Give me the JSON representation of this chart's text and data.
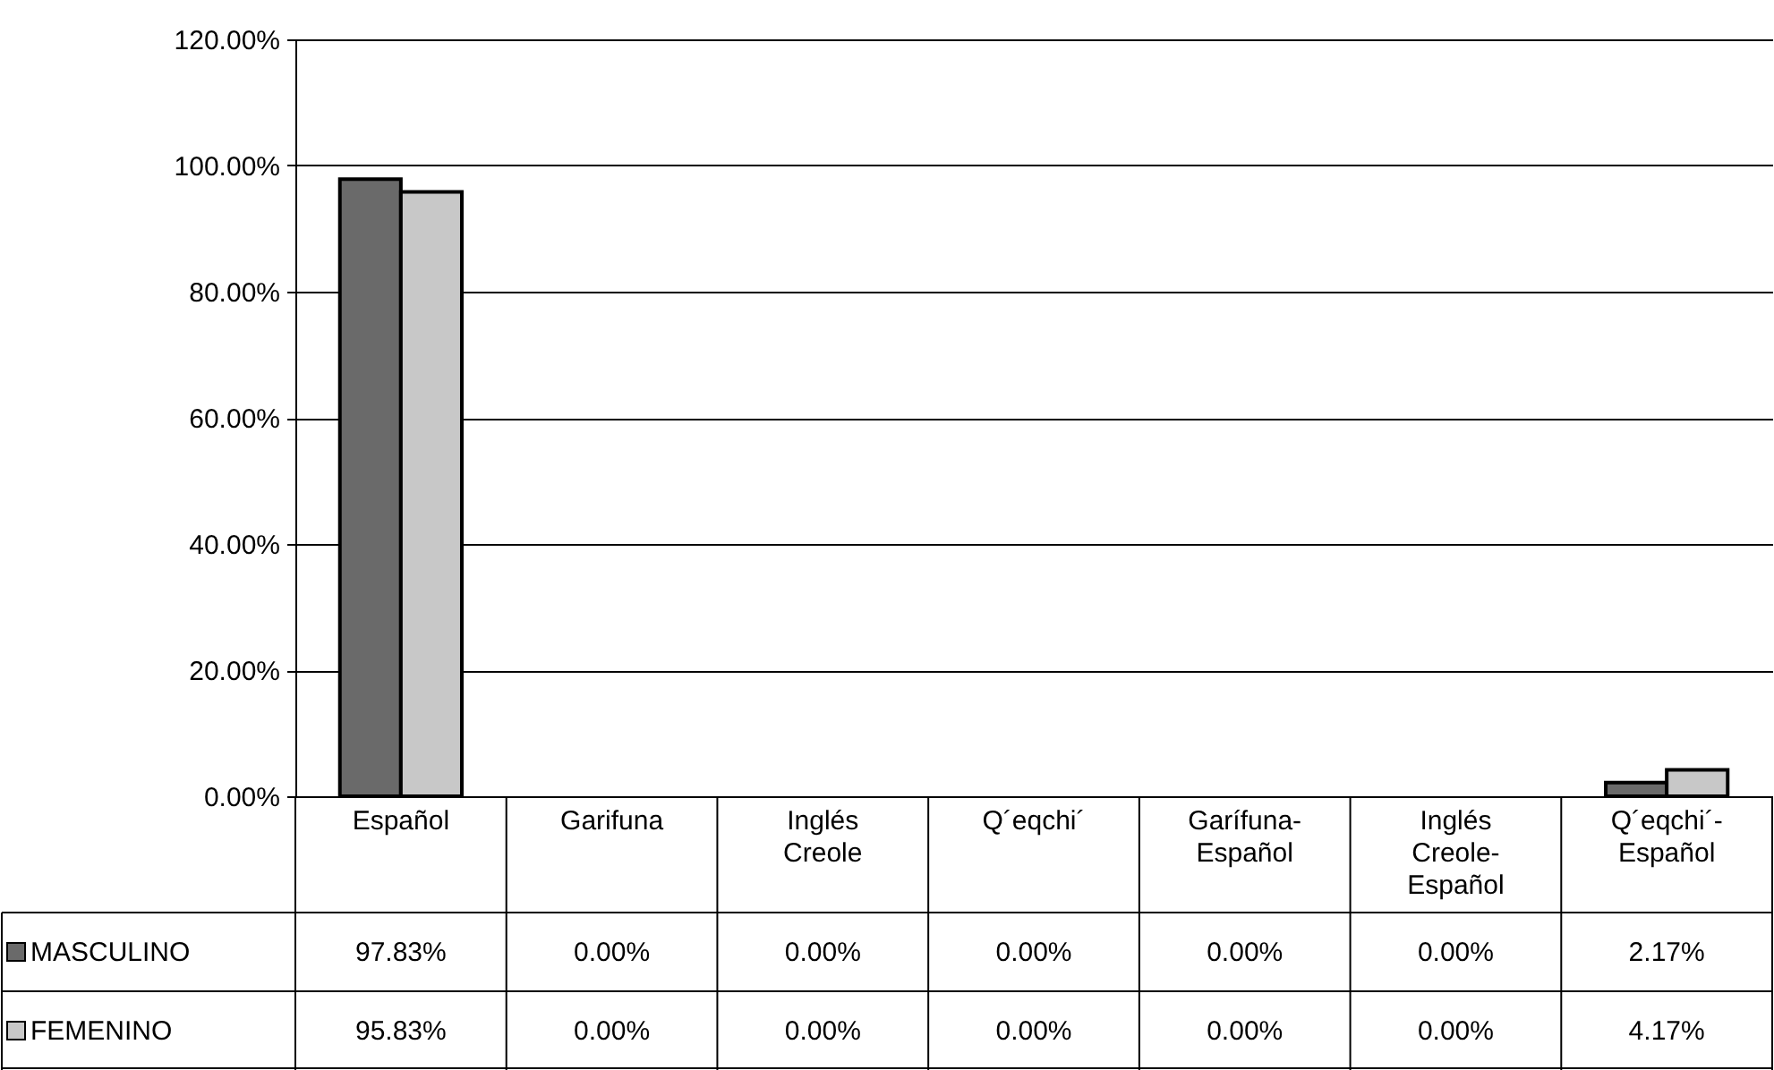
{
  "chart_data": {
    "type": "bar",
    "categories": [
      "Español",
      "Garifuna",
      "Inglés Creole",
      "Q´eqchi´",
      "Garífuna-Español",
      "Inglés Creole-Español",
      "Q´eqchi´-Español"
    ],
    "series": [
      {
        "name": "MASCULINO",
        "color": "#6a6a6a",
        "values": [
          97.83,
          0,
          0,
          0,
          0,
          0,
          2.17
        ],
        "value_labels": [
          "97.83%",
          "0.00%",
          "0.00%",
          "0.00%",
          "0.00%",
          "0.00%",
          "2.17%"
        ]
      },
      {
        "name": "FEMENINO",
        "color": "#c8c8c8",
        "values": [
          95.83,
          0,
          0,
          0,
          0,
          0,
          4.17
        ],
        "value_labels": [
          "95.83%",
          "0.00%",
          "0.00%",
          "0.00%",
          "0.00%",
          "0.00%",
          "4.17%"
        ]
      }
    ],
    "ylim": [
      0,
      120
    ],
    "yticks": [
      {
        "value": 0,
        "label": "0.00%"
      },
      {
        "value": 20,
        "label": "20.00%"
      },
      {
        "value": 40,
        "label": "40.00%"
      },
      {
        "value": 60,
        "label": "60.00%"
      },
      {
        "value": 80,
        "label": "80.00%"
      },
      {
        "value": 100,
        "label": "100.00%"
      },
      {
        "value": 120,
        "label": "120.00%"
      }
    ],
    "grid": "y",
    "legend": "bottom left"
  }
}
